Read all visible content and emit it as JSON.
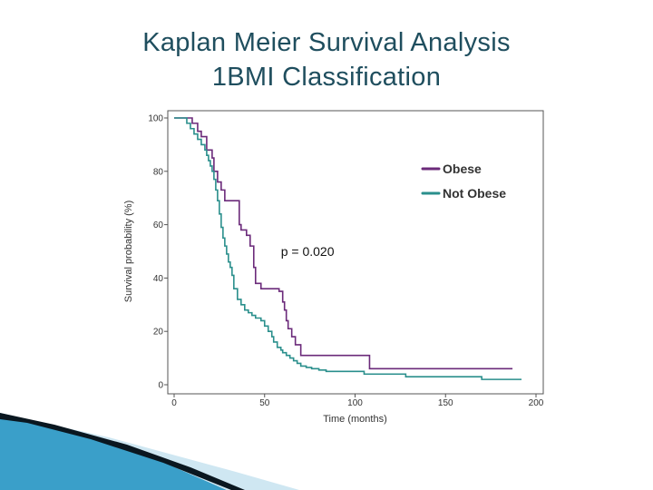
{
  "slide": {
    "title_line1": "Kaplan Meier Survival Analysis",
    "title_line2": "1BMI Classification"
  },
  "colors": {
    "title": "#1f4e5e",
    "obese": "#6b2a7a",
    "not_obese": "#2a8f8c",
    "wave_dark": "#0a1720",
    "wave_blue": "#3a9fc9"
  },
  "chart_data": {
    "type": "line",
    "step": true,
    "title": "",
    "xlabel": "Time (months)",
    "ylabel": "Survival probability (%)",
    "xlim": [
      0,
      200
    ],
    "ylim": [
      0,
      100
    ],
    "xticks": [
      0,
      50,
      100,
      150,
      200
    ],
    "yticks": [
      0,
      20,
      40,
      60,
      80,
      100
    ],
    "grid": false,
    "legend_position": "top-right",
    "annotation": "p = 0.020",
    "series": [
      {
        "name": "Obese",
        "color": "#6b2a7a",
        "x": [
          0,
          7,
          10,
          13,
          15,
          18,
          21,
          22,
          24,
          26,
          28,
          32,
          36,
          37,
          40,
          42,
          44,
          45,
          48,
          56,
          58,
          60,
          61,
          62,
          63,
          65,
          67,
          70,
          107,
          108,
          110,
          187
        ],
        "y": [
          100,
          100,
          98,
          95,
          93,
          88,
          85,
          80,
          76,
          73,
          69,
          69,
          60,
          58,
          56,
          52,
          44,
          38,
          36,
          36,
          35,
          31,
          28,
          24,
          21,
          18,
          15,
          11,
          11,
          6,
          6,
          6
        ]
      },
      {
        "name": "Not Obese",
        "color": "#2a8f8c",
        "x": [
          0,
          7,
          9,
          11,
          13,
          15,
          17,
          18,
          19,
          20,
          21,
          22,
          23,
          24,
          25,
          26,
          27,
          28,
          29,
          30,
          31,
          32,
          33,
          35,
          37,
          39,
          41,
          43,
          45,
          48,
          50,
          52,
          54,
          55,
          57,
          59,
          60,
          62,
          64,
          66,
          68,
          70,
          73,
          76,
          80,
          84,
          90,
          105,
          128,
          170,
          192
        ],
        "y": [
          100,
          98,
          96,
          94,
          92,
          90,
          88,
          86,
          84,
          82,
          80,
          77,
          73,
          69,
          64,
          59,
          55,
          52,
          49,
          46,
          44,
          41,
          36,
          32,
          30,
          28,
          27,
          26,
          25,
          24,
          22,
          20,
          18,
          16,
          14,
          13,
          12,
          11,
          10,
          9,
          8,
          7,
          6.5,
          6,
          5.5,
          5,
          5,
          4,
          3,
          2,
          2
        ]
      }
    ]
  }
}
